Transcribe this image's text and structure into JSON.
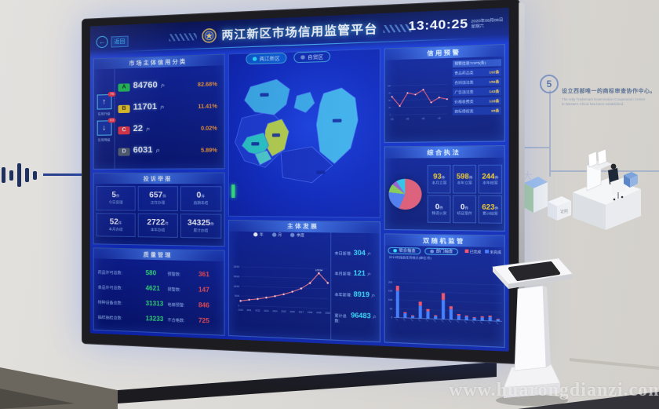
{
  "scene": {
    "watermark": "www.huarongdianzi.com",
    "wall": {
      "step_number": "5",
      "milestone_zh": "设立西部唯一的商标审查协作中心。",
      "milestone_en_1": "The only Trademark Examination Cooperation Center",
      "milestone_en_2": "in Western China has been established."
    }
  },
  "colors": {
    "screen_bg": "#1130cc",
    "panel": "#0a1d9c",
    "accent": "#35e0ff",
    "grade_a": "#1ec94f",
    "grade_b": "#f6d41c",
    "grade_c": "#f5333f",
    "grade_d": "#57636f",
    "good": "#35f07a",
    "alert": "#ff4d4d",
    "highlight": "#ffd21e"
  },
  "screen": {
    "back_label": "返回",
    "title": "两江新区市场信用监管平台",
    "clock": {
      "time": "13:40:25",
      "date": "2020年08月08日",
      "weekday": "星期六"
    },
    "map_tabs": [
      {
        "label": "两江新区"
      },
      {
        "label": "自贸区"
      }
    ],
    "left": {
      "credit": {
        "title": "市场主体信用分类",
        "up_badge": "76",
        "up_label": "信用升级",
        "down_badge": "63",
        "down_label": "信用降级",
        "rows": [
          {
            "grade": "A",
            "count": "84760",
            "unit": "户",
            "percent": "82.68%"
          },
          {
            "grade": "B",
            "count": "11701",
            "unit": "户",
            "percent": "11.41%"
          },
          {
            "grade": "C",
            "count": "22",
            "unit": "户",
            "percent": "0.02%"
          },
          {
            "grade": "D",
            "count": "6031",
            "unit": "户",
            "percent": "5.89%"
          }
        ]
      },
      "complaints": {
        "title": "投诉举报",
        "cells": [
          {
            "value": "5",
            "unit": "件",
            "label": "今日受理"
          },
          {
            "value": "657",
            "unit": "件",
            "label": "正在办理"
          },
          {
            "value": "0",
            "unit": "件",
            "label": "逾期未结"
          },
          {
            "value": "52",
            "unit": "件",
            "label": "本月办结"
          },
          {
            "value": "2722",
            "unit": "件",
            "label": "本年办结"
          },
          {
            "value": "34325",
            "unit": "件",
            "label": "累计办结"
          }
        ]
      },
      "quality": {
        "title": "质量管理",
        "rows": [
          {
            "label": "药品许可总数:",
            "value": "580",
            "warn_label": "预警数:",
            "warn_value": "361"
          },
          {
            "label": "食品许可总数:",
            "value": "4621",
            "warn_label": "预警数:",
            "warn_value": "147"
          },
          {
            "label": "特种设备总数:",
            "value": "31313",
            "warn_label": "电梯预警:",
            "warn_value": "846"
          },
          {
            "label": "抽样抽检总数:",
            "value": "13233",
            "warn_label": "不合格数:",
            "warn_value": "725"
          }
        ]
      }
    },
    "center": {
      "development": {
        "title": "主体发展",
        "stats": [
          {
            "label": "本日新增:",
            "value": "304",
            "unit": "户"
          },
          {
            "label": "本月新增:",
            "value": "121",
            "unit": "户"
          },
          {
            "label": "本年新增:",
            "value": "8919",
            "unit": "户"
          },
          {
            "label": "累计总数:",
            "value": "96483",
            "unit": "户"
          }
        ]
      }
    },
    "right": {
      "warning": {
        "title": "信用预警",
        "list_header": "预警信息TOP5(条)",
        "list": [
          {
            "label": "食品药品类",
            "value": "192条"
          },
          {
            "label": "合同违法类",
            "value": "156条"
          },
          {
            "label": "广告违法类",
            "value": "143条"
          },
          {
            "label": "价格收费类",
            "value": "128条"
          },
          {
            "label": "商标侵权类",
            "value": "95条"
          }
        ]
      },
      "enforcement": {
        "title": "综合执法",
        "stats": [
          {
            "value": "93",
            "unit": "件",
            "label": "本月立案"
          },
          {
            "value": "598",
            "unit": "件",
            "label": "本年立案"
          },
          {
            "value": "244",
            "unit": "件",
            "label": "本年结案"
          },
          {
            "value": "0",
            "unit": "件",
            "label": "移送公安"
          },
          {
            "value": "0",
            "unit": "件",
            "label": "听证案件"
          },
          {
            "value": "623",
            "unit": "件",
            "label": "累计结案"
          }
        ]
      },
      "spot_check": {
        "title": "双随机监管",
        "toggles": [
          "联合抽查",
          "部门抽查"
        ],
        "legend": [
          "已完成",
          "未完成"
        ],
        "caption": "2019年抽查任务统计(单位:件)"
      }
    }
  },
  "chart_data": [
    {
      "type": "line",
      "title": "主体发展",
      "x": [
        "2010",
        "2011",
        "2012",
        "2013",
        "2014",
        "2015",
        "2016",
        "2017",
        "2018",
        "2019",
        "2020"
      ],
      "values": [
        2408,
        3120,
        3680,
        4520,
        5410,
        6480,
        7950,
        9720,
        12600,
        17694,
        12880
      ],
      "ylim": [
        0,
        20000
      ],
      "legend": [
        "年",
        "月",
        "季度"
      ],
      "annotation": "17694",
      "line_color": "#ff7a8a"
    },
    {
      "type": "line",
      "title": "信用预警",
      "x": [
        "1月",
        "2月",
        "3月",
        "4月",
        "5月",
        "6月",
        "7月",
        "8月"
      ],
      "values": [
        62,
        30,
        74,
        68,
        84,
        40,
        56,
        50
      ],
      "ylim": [
        0,
        100
      ],
      "line_color": "#ff5a6e"
    },
    {
      "type": "pie",
      "title": "综合执法案件占比",
      "values": [
        56,
        21,
        9,
        5,
        9
      ],
      "colors": [
        "#e85a70",
        "#4f7df0",
        "#8bd24a",
        "#9c5fd2",
        "#2fc9e8"
      ]
    },
    {
      "type": "bar",
      "title": "双随机监管",
      "series": [
        {
          "name": "已完成",
          "color": "#ff4d5e",
          "values": [
            28,
            6,
            4,
            22,
            12,
            5,
            38,
            16,
            8,
            5,
            4,
            6,
            7,
            3
          ]
        },
        {
          "name": "未完成",
          "color": "#3e7bff",
          "values": [
            152,
            26,
            12,
            72,
            42,
            16,
            108,
            58,
            24,
            20,
            14,
            18,
            22,
            10
          ]
        }
      ],
      "ylim": [
        0,
        200
      ]
    }
  ]
}
